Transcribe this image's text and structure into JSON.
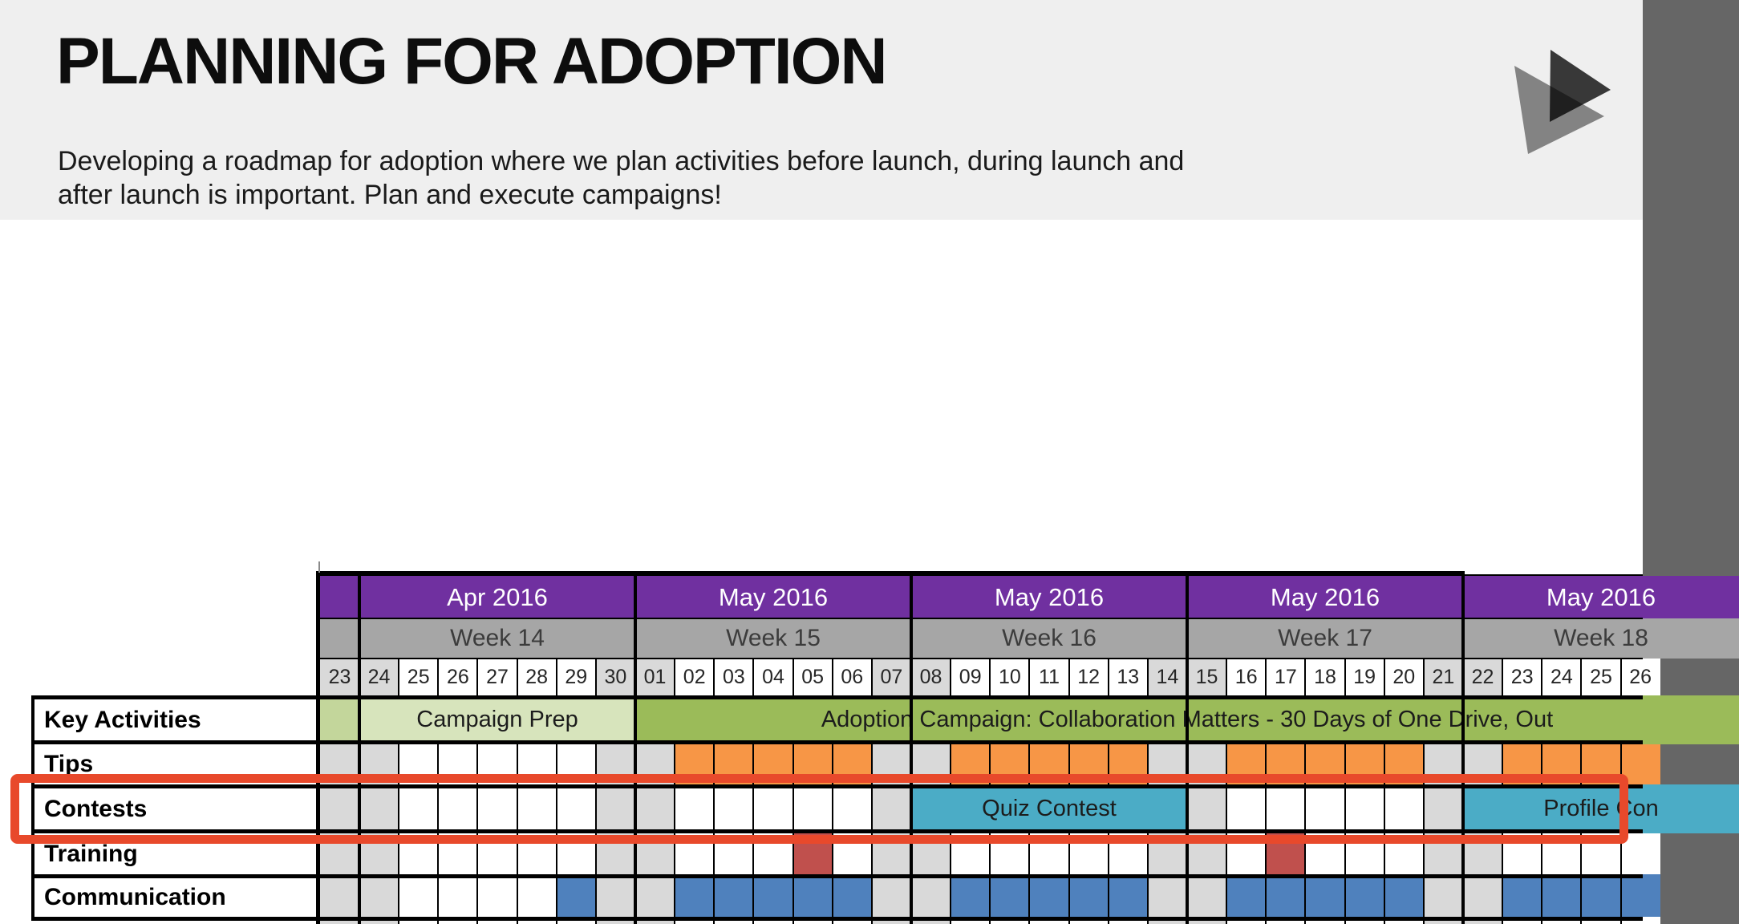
{
  "slide": {
    "title": "PLANNING FOR ADOPTION",
    "subtitle": "Developing a roadmap for adoption where we plan activities before launch, during launch and\nafter launch is important. Plan and execute campaigns!"
  },
  "icon": {
    "name": "play-triangles-icon"
  },
  "colors": {
    "header_band": "#efefef",
    "month_purple": "#7030a0",
    "week_gray": "#a6a6a6",
    "weekend_gray": "#d9d9d9",
    "olive": "#c3d69b",
    "green_light": "#d7e4bc",
    "green": "#9bbb59",
    "orange": "#f79646",
    "teal": "#4bacc6",
    "blue": "#4f81bd",
    "red": "#c0504d",
    "annotation_red": "#e8492b",
    "grid_border": "#000000"
  },
  "chart_data": {
    "type": "gantt",
    "title": "",
    "sections": [
      {
        "month": "",
        "week": "",
        "from": 0,
        "to": 0
      },
      {
        "month": "Apr 2016",
        "week": "Week 14",
        "from": 1,
        "to": 7
      },
      {
        "month": "May 2016",
        "week": "Week 15",
        "from": 8,
        "to": 14
      },
      {
        "month": "May 2016",
        "week": "Week 16",
        "from": 15,
        "to": 21
      },
      {
        "month": "May 2016",
        "week": "Week 17",
        "from": 22,
        "to": 28
      },
      {
        "month": "May 2016",
        "week": "Week 18",
        "from": 29,
        "to": 35
      }
    ],
    "columns": [
      {
        "label": "23",
        "weekend": true
      },
      {
        "label": "24",
        "weekend": true
      },
      {
        "label": "25",
        "weekend": false
      },
      {
        "label": "26",
        "weekend": false
      },
      {
        "label": "27",
        "weekend": false
      },
      {
        "label": "28",
        "weekend": false
      },
      {
        "label": "29",
        "weekend": false
      },
      {
        "label": "30",
        "weekend": true
      },
      {
        "label": "01",
        "weekend": true
      },
      {
        "label": "02",
        "weekend": false
      },
      {
        "label": "03",
        "weekend": false
      },
      {
        "label": "04",
        "weekend": false
      },
      {
        "label": "05",
        "weekend": false
      },
      {
        "label": "06",
        "weekend": false
      },
      {
        "label": "07",
        "weekend": true
      },
      {
        "label": "08",
        "weekend": true
      },
      {
        "label": "09",
        "weekend": false
      },
      {
        "label": "10",
        "weekend": false
      },
      {
        "label": "11",
        "weekend": false
      },
      {
        "label": "12",
        "weekend": false
      },
      {
        "label": "13",
        "weekend": false
      },
      {
        "label": "14",
        "weekend": true
      },
      {
        "label": "15",
        "weekend": true
      },
      {
        "label": "16",
        "weekend": false
      },
      {
        "label": "17",
        "weekend": false
      },
      {
        "label": "18",
        "weekend": false
      },
      {
        "label": "19",
        "weekend": false
      },
      {
        "label": "20",
        "weekend": false
      },
      {
        "label": "21",
        "weekend": true
      },
      {
        "label": "22",
        "weekend": true
      },
      {
        "label": "23",
        "weekend": false
      },
      {
        "label": "24",
        "weekend": false
      },
      {
        "label": "25",
        "weekend": false
      },
      {
        "label": "26",
        "weekend": false
      }
    ],
    "rows": [
      {
        "label": "Key Activities",
        "weekend_shading": false,
        "cells": [],
        "bars": [
          {
            "from": 0,
            "to": 0,
            "color": "olive",
            "label": ""
          },
          {
            "from": 1,
            "to": 7,
            "color": "green_light",
            "label": "Campaign Prep"
          },
          {
            "from": 8,
            "to": 36,
            "color": "green",
            "label": "Adoption Campaign: Collaboration Matters - 30 Days of One Drive, Out"
          }
        ]
      },
      {
        "label": "Tips",
        "weekend_shading": true,
        "cells": [
          {
            "from": 9,
            "to": 13,
            "color": "orange"
          },
          {
            "from": 16,
            "to": 20,
            "color": "orange"
          },
          {
            "from": 23,
            "to": 27,
            "color": "orange"
          },
          {
            "from": 30,
            "to": 33,
            "color": "orange"
          }
        ],
        "bars": []
      },
      {
        "label": "Contests",
        "weekend_shading": true,
        "cells": [],
        "bars": [
          {
            "from": 15,
            "to": 21,
            "color": "teal",
            "label": "Quiz Contest"
          },
          {
            "from": 29,
            "to": 35,
            "color": "teal",
            "label": "Profile Con"
          }
        ]
      },
      {
        "label": "Training",
        "weekend_shading": true,
        "cells": [
          {
            "from": 12,
            "to": 12,
            "color": "red"
          },
          {
            "from": 24,
            "to": 24,
            "color": "red"
          }
        ],
        "bars": []
      },
      {
        "label": "Communication",
        "weekend_shading": true,
        "cells": [
          {
            "from": 6,
            "to": 6,
            "color": "blue"
          },
          {
            "from": 9,
            "to": 13,
            "color": "blue"
          },
          {
            "from": 16,
            "to": 20,
            "color": "blue"
          },
          {
            "from": 23,
            "to": 27,
            "color": "blue"
          },
          {
            "from": 30,
            "to": 33,
            "color": "blue"
          }
        ],
        "bars": []
      }
    ],
    "annotation": {
      "shape": "rectangle",
      "color_key": "annotation_red",
      "highlights": "Contests row"
    }
  }
}
